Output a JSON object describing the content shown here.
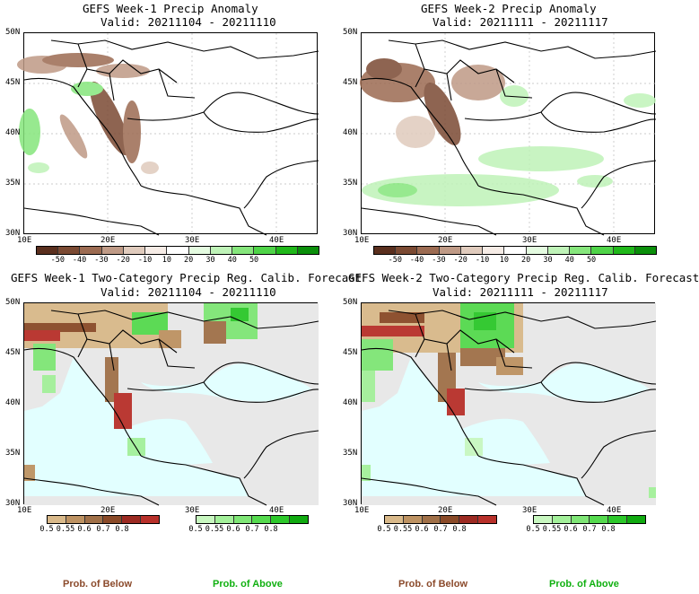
{
  "panels": [
    {
      "title": "GEFS Week-1 Precip Anomaly",
      "valid": "Valid: 20211104 - 20211110"
    },
    {
      "title": "GEFS Week-2 Precip Anomaly",
      "valid": "Valid: 20211111 - 20211117"
    },
    {
      "title": "GEFS Week-1 Two-Category Precip Reg. Calib. Forecast",
      "valid": "Valid: 20211104 - 20211110"
    },
    {
      "title": "GEFS Week-2 Two-Category Precip Reg. Calib. Forecast",
      "valid": "Valid: 20211111 - 20211117"
    }
  ],
  "lat_labels": [
    "50N",
    "45N",
    "40N",
    "35N",
    "30N"
  ],
  "lon_labels": [
    "10E",
    "20E",
    "30E",
    "40E"
  ],
  "anomaly_colorbar": {
    "ticks": [
      "-50",
      "-40",
      "-30",
      "-20",
      "-10",
      "10",
      "20",
      "30",
      "40",
      "50"
    ],
    "colors": [
      "#5a2f1e",
      "#7b4a33",
      "#9c6b52",
      "#bf9a86",
      "#e0cbbd",
      "#f6ece6",
      "#ffffff",
      "#e4fbe0",
      "#bff3b8",
      "#86e67c",
      "#4fd448",
      "#20b81a",
      "#0a8f0a"
    ]
  },
  "prob_colorbar_below": {
    "ticks": [
      "0.5",
      "0.55",
      "0.6",
      "0.7",
      "0.8"
    ],
    "colors": [
      "#d9b98a",
      "#bd9262",
      "#a07048",
      "#8a4a28",
      "#9c2a22",
      "#b8302a"
    ]
  },
  "prob_colorbar_above": {
    "ticks": [
      "0.5",
      "0.55",
      "0.6",
      "0.7",
      "0.8"
    ],
    "colors": [
      "#c8f7c0",
      "#a3f09a",
      "#7fe676",
      "#55da4e",
      "#2cc82a",
      "#10aa10"
    ]
  },
  "labels": {
    "prob_below": "Prob. of Below",
    "prob_above": "Prob. of Above"
  },
  "colors": {
    "sea_prob": "#e2ffff",
    "land_prob": "#e8e8e8",
    "below_text": "#8b4a2b",
    "above_text": "#10b010"
  }
}
